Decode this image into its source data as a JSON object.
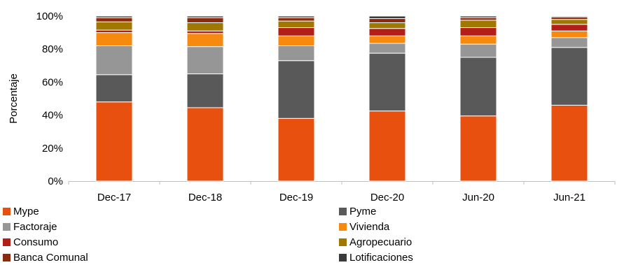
{
  "chart_data": {
    "type": "bar",
    "stacked": true,
    "ylabel": "Porcentaje",
    "ylim": [
      0,
      100
    ],
    "yticks": [
      "0%",
      "20%",
      "40%",
      "60%",
      "80%",
      "100%"
    ],
    "categories": [
      "Dec-17",
      "Dec-18",
      "Dec-19",
      "Dec-20",
      "Jun-20",
      "Jun-21"
    ],
    "series": [
      {
        "name": "Mype",
        "color": "#E8500F",
        "values": [
          48,
          44.5,
          38,
          42.5,
          39.5,
          46
        ]
      },
      {
        "name": "Pyme",
        "color": "#595959",
        "values": [
          16.5,
          20.5,
          35,
          35,
          35.5,
          35
        ]
      },
      {
        "name": "Factoraje",
        "color": "#969696",
        "values": [
          17.5,
          16.5,
          9,
          6,
          8,
          6
        ]
      },
      {
        "name": "Vivienda",
        "color": "#F7890F",
        "values": [
          8,
          8,
          6,
          4.5,
          5,
          4
        ]
      },
      {
        "name": "Consumo",
        "color": "#B41E19",
        "values": [
          1.5,
          1.5,
          5,
          4.5,
          5,
          4
        ]
      },
      {
        "name": "Agropecuario",
        "color": "#A07800",
        "values": [
          5,
          5,
          4,
          3.5,
          4.5,
          3
        ]
      },
      {
        "name": "Banca Comunal",
        "color": "#8B2A0C",
        "values": [
          2.5,
          3,
          2,
          2.5,
          1.5,
          1.5
        ]
      },
      {
        "name": "Lotificaciones",
        "color": "#3A3A3A",
        "values": [
          1,
          1,
          1,
          1.5,
          1,
          0.5
        ]
      }
    ],
    "legend_position": "bottom"
  }
}
